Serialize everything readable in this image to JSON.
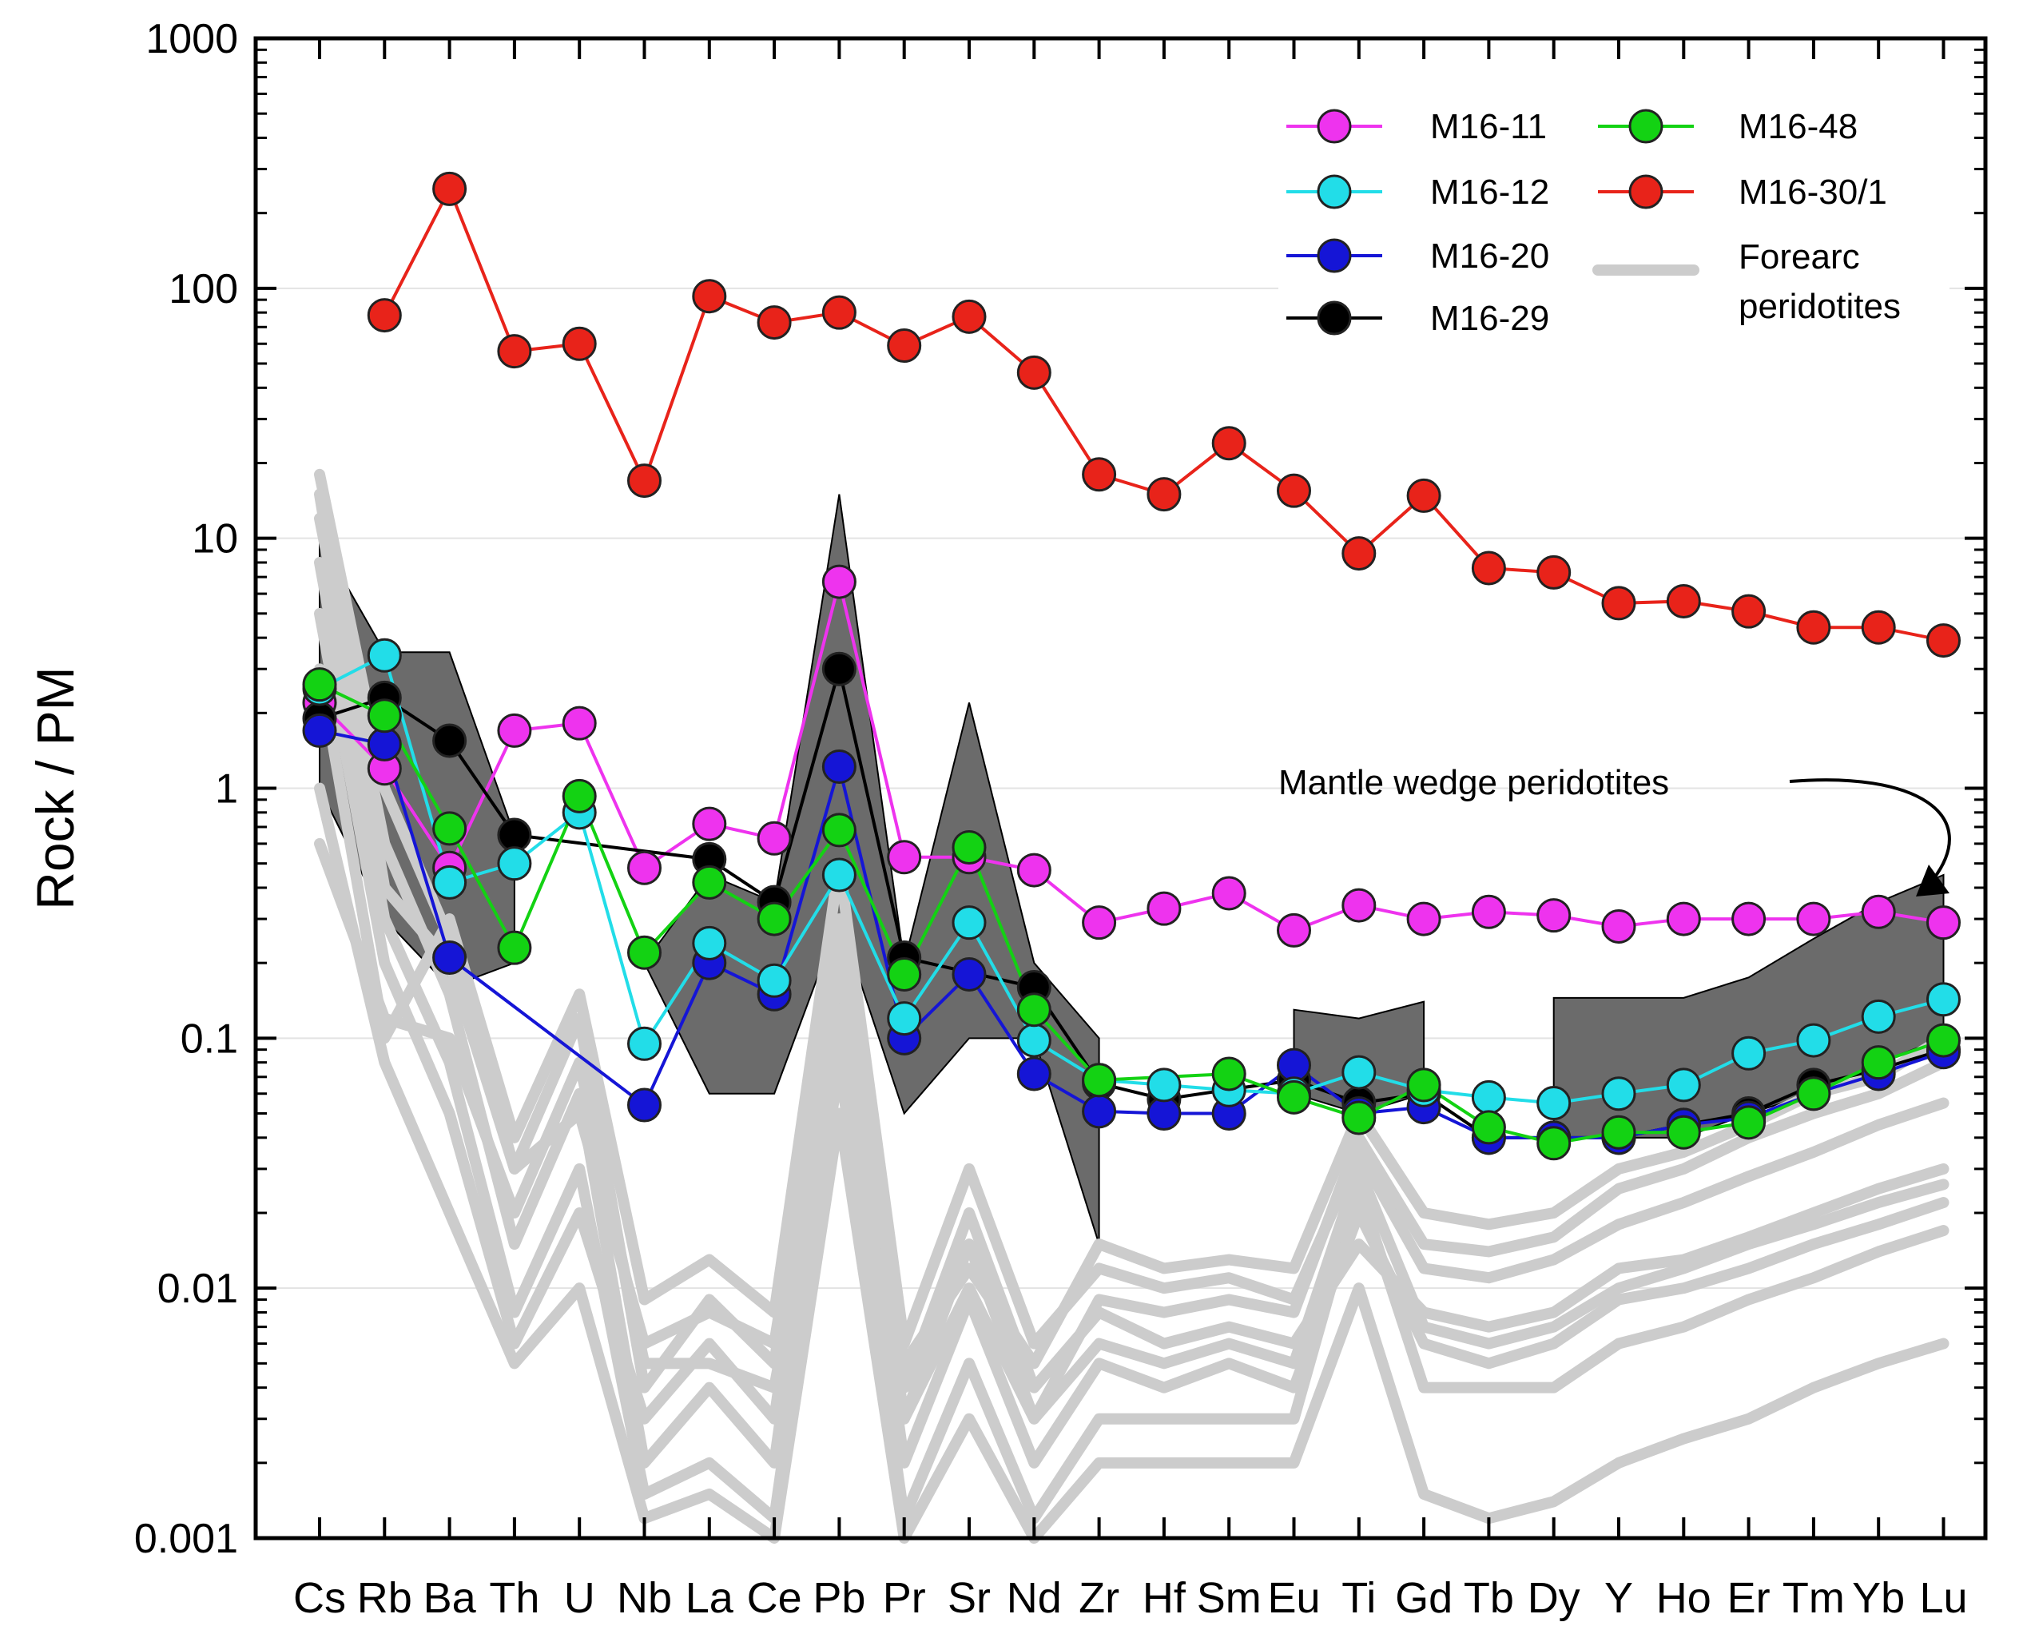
{
  "chart_data": {
    "type": "line",
    "ylabel": "Rock / PM",
    "yscale": "log",
    "ylim": [
      0.001,
      1000
    ],
    "yticks": [
      "0.001",
      "0.01",
      "0.1",
      "1",
      "10",
      "100",
      "1000"
    ],
    "grid": "horizontal",
    "legend_position": "top-right",
    "categories": [
      "Cs",
      "Rb",
      "Ba",
      "Th",
      "U",
      "Nb",
      "La",
      "Ce",
      "Pb",
      "Pr",
      "Sr",
      "Nd",
      "Zr",
      "Hf",
      "Sm",
      "Eu",
      "Ti",
      "Gd",
      "Tb",
      "Dy",
      "Y",
      "Ho",
      "Er",
      "Tm",
      "Yb",
      "Lu"
    ],
    "series": [
      {
        "name": "M16-30/1",
        "color": "#e8231a",
        "values": [
          null,
          78,
          250,
          56,
          60,
          17,
          93,
          73,
          80,
          59,
          77,
          46,
          18,
          15,
          24,
          15.5,
          8.7,
          14.8,
          7.6,
          7.3,
          5.5,
          5.6,
          5.1,
          4.4,
          4.4,
          3.9
        ]
      },
      {
        "name": "M16-11",
        "color": "#ee33ee",
        "values": [
          2.2,
          1.2,
          0.48,
          1.7,
          1.82,
          0.48,
          0.72,
          0.63,
          6.7,
          0.53,
          0.53,
          0.47,
          0.29,
          0.33,
          0.38,
          0.27,
          0.34,
          0.3,
          0.32,
          0.31,
          0.28,
          0.3,
          0.3,
          0.3,
          0.32,
          0.29
        ]
      },
      {
        "name": "M16-29",
        "color": "#000000",
        "values": [
          1.9,
          2.3,
          1.55,
          0.65,
          null,
          null,
          0.52,
          0.35,
          3.0,
          0.21,
          null,
          0.16,
          0.066,
          0.057,
          null,
          0.068,
          0.055,
          0.06,
          0.04,
          0.04,
          0.04,
          0.045,
          0.05,
          0.065,
          0.075,
          0.09
        ]
      },
      {
        "name": "M16-20",
        "color": "#1515d6",
        "values": [
          1.7,
          1.5,
          0.21,
          null,
          null,
          0.054,
          0.2,
          0.15,
          1.22,
          0.1,
          0.18,
          0.072,
          0.051,
          0.05,
          0.05,
          0.078,
          0.05,
          0.053,
          0.04,
          0.04,
          0.04,
          0.045,
          0.048,
          0.06,
          0.072,
          0.088
        ]
      },
      {
        "name": "M16-12",
        "color": "#22dde8",
        "values": [
          2.5,
          3.4,
          0.42,
          0.5,
          0.8,
          0.095,
          0.24,
          0.17,
          0.45,
          0.12,
          0.29,
          0.098,
          0.068,
          0.065,
          0.062,
          0.06,
          0.073,
          0.062,
          0.058,
          0.055,
          0.06,
          0.065,
          0.087,
          0.098,
          0.122,
          0.143
        ]
      },
      {
        "name": "M16-48",
        "color": "#13d213",
        "values": [
          2.6,
          1.95,
          0.69,
          0.23,
          0.93,
          0.22,
          0.42,
          0.3,
          0.68,
          0.18,
          0.58,
          0.13,
          0.068,
          null,
          0.072,
          0.058,
          0.048,
          0.065,
          0.044,
          0.038,
          0.042,
          0.042,
          0.046,
          0.06,
          0.08,
          0.098
        ]
      }
    ],
    "legend_entries": [
      {
        "name": "M16-11",
        "color": "#ee33ee"
      },
      {
        "name": "M16-12",
        "color": "#22dde8"
      },
      {
        "name": "M16-20",
        "color": "#1515d6"
      },
      {
        "name": "M16-29",
        "color": "#000000"
      },
      {
        "name": "M16-48",
        "color": "#13d213"
      },
      {
        "name": "M16-30/1",
        "color": "#e8231a"
      },
      {
        "name_line1": "Forearc",
        "name_line2": "peridotites",
        "color": "#cccccc"
      }
    ],
    "forearc_peridotites": {
      "color": "#cccccc",
      "lines": [
        [
          18,
          1.0,
          0.25,
          0.03,
          0.12,
          0.004,
          0.009,
          0.005,
          0.3,
          0.004,
          0.02,
          0.004,
          0.008,
          0.006,
          0.007,
          0.006,
          0.015,
          0.008,
          0.007,
          0.008,
          0.012,
          0.013,
          0.016,
          0.02,
          0.025,
          0.03
        ],
        [
          12,
          0.6,
          0.15,
          0.015,
          0.06,
          0.002,
          0.004,
          0.002,
          0.15,
          0.002,
          0.009,
          0.002,
          0.005,
          0.004,
          0.005,
          0.004,
          0.02,
          0.006,
          0.005,
          0.006,
          0.009,
          0.01,
          0.012,
          0.015,
          0.018,
          0.022
        ],
        [
          8,
          0.3,
          0.08,
          0.008,
          0.03,
          0.0015,
          0.002,
          0.0012,
          0.08,
          0.0012,
          0.005,
          0.0012,
          0.003,
          0.003,
          0.003,
          0.003,
          0.025,
          0.004,
          0.004,
          0.004,
          0.006,
          0.007,
          0.009,
          0.011,
          0.014,
          0.017
        ],
        [
          5,
          0.2,
          0.05,
          0.006,
          0.02,
          0.003,
          0.006,
          0.003,
          0.2,
          0.003,
          0.015,
          0.003,
          0.006,
          0.005,
          0.006,
          0.005,
          0.03,
          0.007,
          0.006,
          0.007,
          0.01,
          0.012,
          0.015,
          0.018,
          0.022,
          0.026
        ],
        [
          3,
          0.1,
          0.3,
          0.04,
          0.15,
          0.009,
          0.013,
          0.008,
          0.5,
          0.006,
          0.03,
          0.006,
          0.012,
          0.01,
          0.011,
          0.009,
          0.035,
          0.012,
          0.011,
          0.013,
          0.018,
          0.022,
          0.028,
          0.035,
          0.045,
          0.055
        ],
        [
          1,
          0.08,
          0.02,
          0.005,
          0.01,
          0.0012,
          0.0015,
          0.001,
          0.05,
          0.001,
          0.003,
          0.001,
          0.002,
          0.002,
          0.002,
          0.002,
          0.01,
          0.0015,
          0.0012,
          0.0014,
          0.002,
          0.0025,
          0.003,
          0.004,
          0.005,
          0.006
        ],
        [
          0.6,
          0.12,
          0.1,
          0.02,
          0.08,
          0.005,
          0.005,
          0.004,
          0.1,
          0.003,
          0.01,
          0.003,
          0.009,
          0.008,
          0.009,
          0.008,
          0.04,
          0.015,
          0.014,
          0.016,
          0.025,
          0.03,
          0.04,
          0.05,
          0.06,
          0.08
        ],
        [
          15,
          0.4,
          0.2,
          0.03,
          0.05,
          0.006,
          0.008,
          0.006,
          0.25,
          0.005,
          0.012,
          0.005,
          0.015,
          0.012,
          0.013,
          0.012,
          0.05,
          0.02,
          0.018,
          0.02,
          0.03,
          0.035,
          0.045,
          0.06,
          0.07,
          0.1
        ]
      ]
    },
    "mantle_wedge_field": {
      "color": "#6b6b6b",
      "segments": [
        {
          "from": 0,
          "to": 3,
          "upper": [
            10,
            3.5,
            3.5,
            0.65
          ],
          "lower": [
            1,
            0.3,
            0.16,
            0.2
          ]
        },
        {
          "from": 5,
          "to": 12,
          "upper": [
            0.2,
            0.45,
            0.35,
            15,
            0.2,
            2.2,
            0.2,
            0.1
          ],
          "lower": [
            0.2,
            0.06,
            0.06,
            0.3,
            0.05,
            0.1,
            0.1,
            0.015
          ]
        },
        {
          "from": 15,
          "to": 17,
          "upper": [
            0.13,
            0.12,
            0.14
          ],
          "lower": [
            0.06,
            0.05,
            0.06
          ]
        },
        {
          "from": 19,
          "to": 25,
          "upper": [
            0.145,
            0.145,
            0.145,
            0.175,
            0.25,
            0.35,
            0.45
          ],
          "lower": [
            0.04,
            0.04,
            0.04,
            0.05,
            0.06,
            0.08,
            0.1
          ]
        }
      ]
    },
    "annotation": {
      "text": "Mantle wedge peridotites"
    }
  }
}
